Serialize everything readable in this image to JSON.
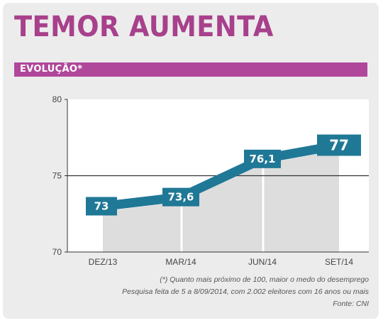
{
  "header": {
    "title": "TEMOR AUMENTA",
    "subtitle": "EVOLUÇÃO*"
  },
  "notes": {
    "footnote": "(*) Quanto mais próximo de 100, maior o medo do desemprego",
    "survey": "Pesquisa feita de 5 a 8/09/2014, com 2.002 eleitores com 16 anos ou mais",
    "source": "Fonte: CNI"
  },
  "colors": {
    "title": "#a8408c",
    "band": "#b0479a",
    "line": "#1f7896",
    "area": "#dddddd",
    "background": "#ececec"
  },
  "chart_data": {
    "type": "line",
    "categories": [
      "DEZ/13",
      "MAR/14",
      "JUN/14",
      "SET/14"
    ],
    "values": [
      73,
      73.6,
      76.1,
      77
    ],
    "value_labels": [
      "73",
      "73,6",
      "76,1",
      "77"
    ],
    "yticks": [
      70,
      75,
      80
    ],
    "ytick_labels": [
      "70",
      "75",
      "80"
    ],
    "ylim": [
      70,
      80
    ],
    "reference_line": 75,
    "grid": false
  }
}
